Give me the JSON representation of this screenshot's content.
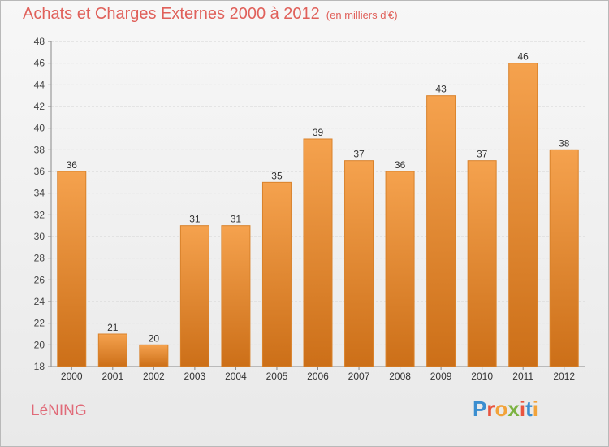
{
  "title": "Achats et Charges Externes 2000 à 2012",
  "unit": "(en milliers d'€)",
  "location": "LéNING",
  "logo": {
    "text": "Proxiti",
    "colors": [
      "#3b8ed0",
      "#e8543f",
      "#f2a33a",
      "#7cb342",
      "#e8543f",
      "#3b8ed0",
      "#f2a33a"
    ]
  },
  "colors": {
    "bar": "#f0922d",
    "bar_dark": "#c96a14",
    "title": "#e0605a",
    "location": "#e06a78"
  },
  "chart_data": {
    "type": "bar",
    "categories": [
      "2000",
      "2001",
      "2002",
      "2003",
      "2004",
      "2005",
      "2006",
      "2007",
      "2008",
      "2009",
      "2010",
      "2011",
      "2012"
    ],
    "values": [
      36,
      21,
      20,
      31,
      31,
      35,
      39,
      37,
      36,
      43,
      37,
      46,
      38
    ],
    "ylim": [
      18,
      48
    ],
    "yticks": [
      18,
      20,
      22,
      24,
      26,
      28,
      30,
      32,
      34,
      36,
      38,
      40,
      42,
      44,
      46,
      48
    ],
    "grid": true,
    "data_labels": true
  }
}
